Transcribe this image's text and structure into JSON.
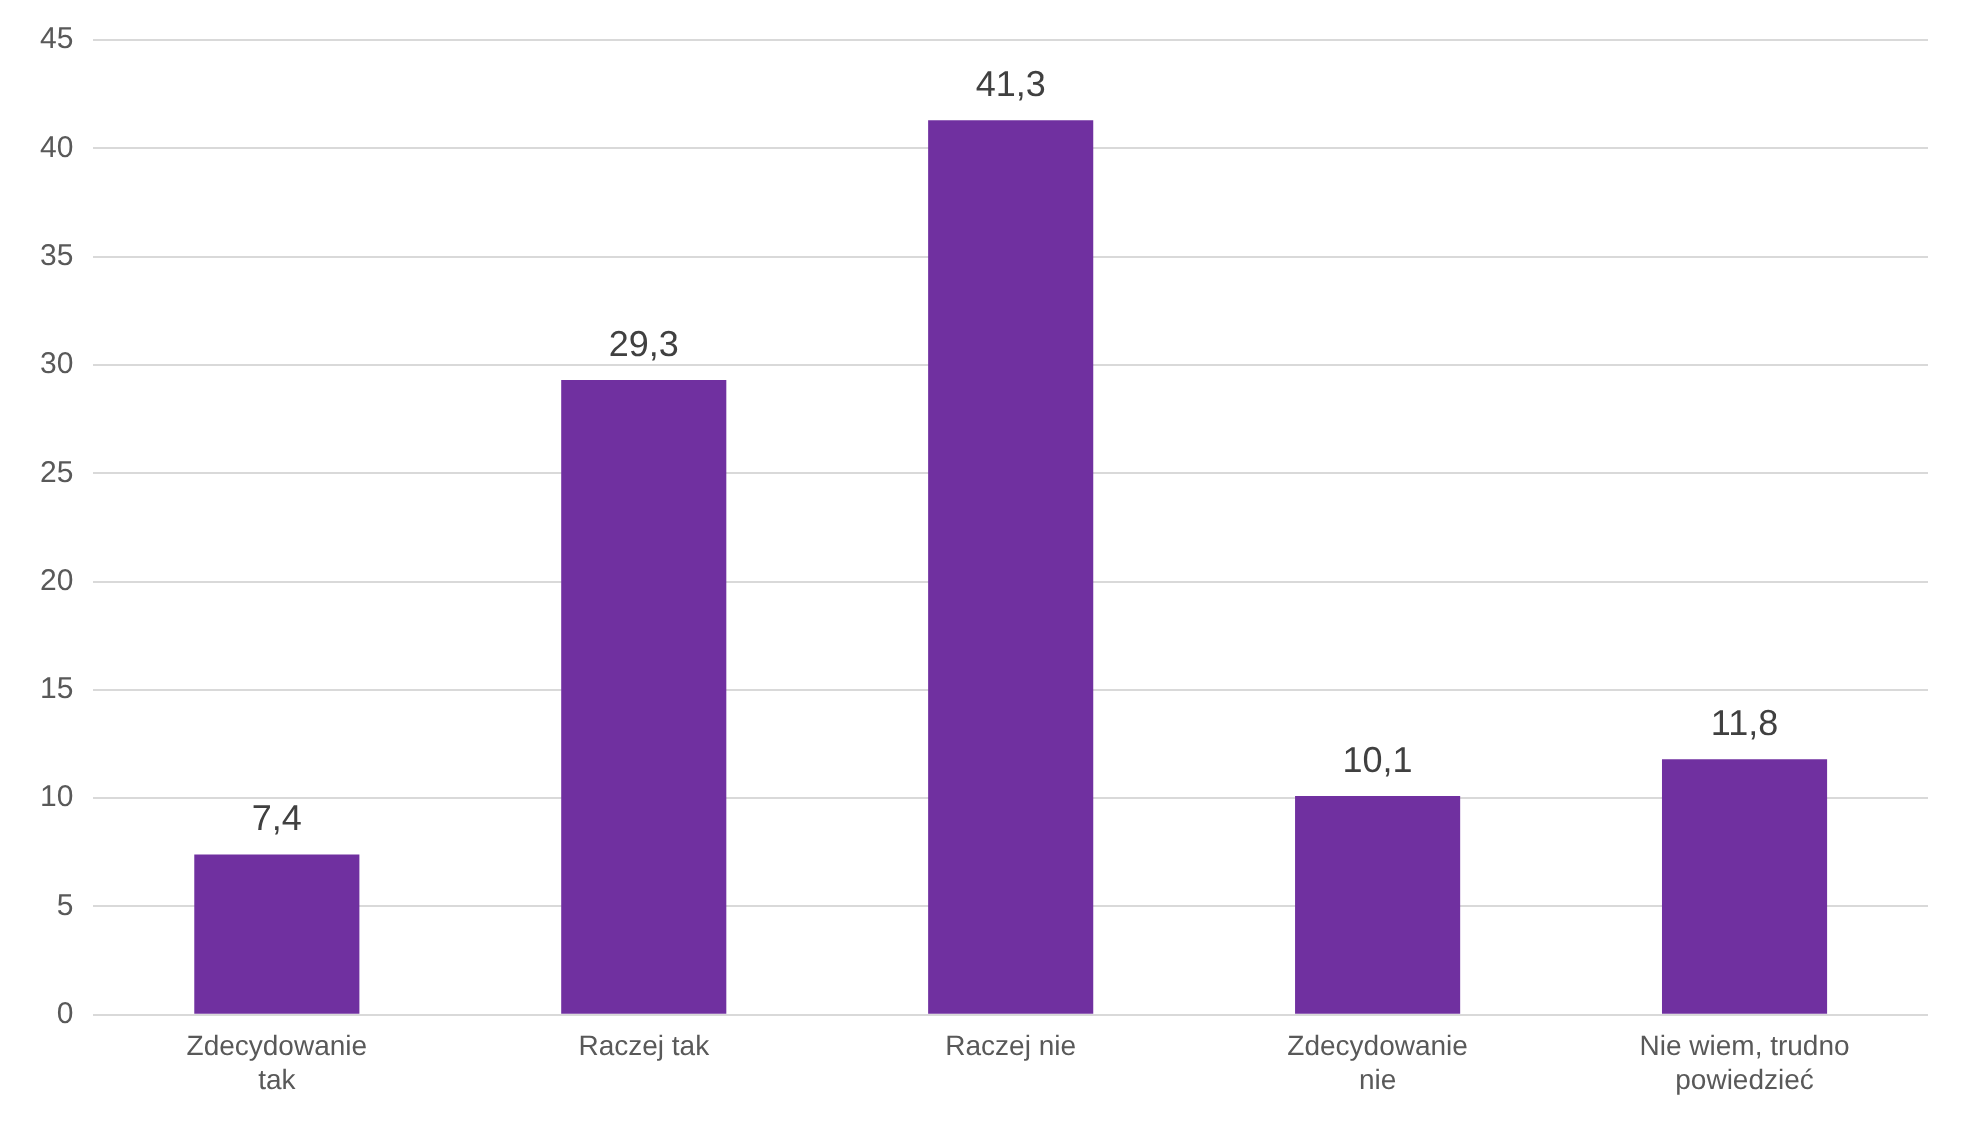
{
  "chart_data": {
    "type": "bar",
    "categories": [
      "Zdecydowanie tak",
      "Raczej tak",
      "Raczej nie",
      "Zdecydowanie nie",
      "Nie wiem, trudno powiedzieć"
    ],
    "values": [
      7.4,
      29.3,
      41.3,
      10.1,
      11.8
    ],
    "value_labels": [
      "7,4",
      "29,3",
      "41,3",
      "10,1",
      "11,8"
    ],
    "color": "#7030a0",
    "ylim": [
      0,
      45
    ],
    "yticks": [
      0,
      5,
      10,
      15,
      20,
      25,
      30,
      35,
      40,
      45
    ],
    "grid": "y",
    "legend": false
  }
}
